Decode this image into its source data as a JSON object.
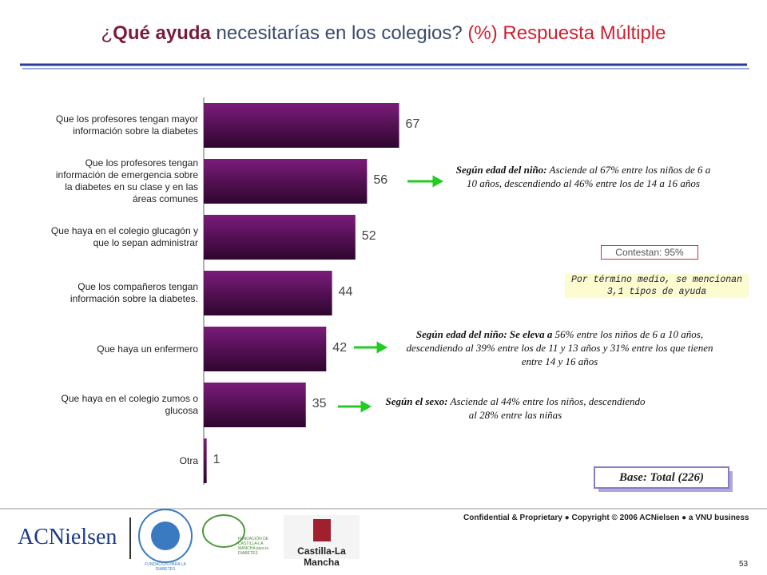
{
  "chart_data": {
    "type": "bar",
    "orientation": "horizontal",
    "title": [
      "¿",
      "Qué ayuda",
      " necesitarías en los colegios? ",
      "(%) Respuesta Múltiple"
    ],
    "categories": [
      "Que los profesores tengan mayor información sobre la diabetes",
      "Que los profesores tengan información de emergencia sobre la diabetes en su clase y en las áreas comunes",
      "Que haya en el colegio glucagón y que lo sepan administrar",
      "Que los compañeros tengan información sobre la diabetes.",
      "Que haya un enfermero",
      "Que haya en el colegio zumos o glucosa",
      "Otra"
    ],
    "values": [
      67,
      56,
      52,
      44,
      42,
      35,
      1
    ],
    "color": "#7a1c7a",
    "annotations": [
      {
        "bold": "Según edad del niño:",
        "text": " Asciende al 67% entre los niños de 6 a 10 años, descendiendo al 46% entre los de 14 a 16 años"
      },
      {
        "bold": "Según edad del niño: Se eleva a",
        "text": " 56% entre los niños de 6 a 10 años, descendiendo al 39% entre los de 11 y 13 años y 31% entre los que tienen entre 14 y  16 años"
      },
      {
        "bold": "Según el sexo:",
        "text": " Asciende al 44% entre  los niños, descendiendo al 28% entre  las niñas"
      }
    ],
    "answered": "Contestan: 95%",
    "average_note": "Por término medio, se mencionan 3,1 tipos de ayuda",
    "base": "Base: Total (226)"
  },
  "footer": {
    "confidential": "Confidential & Proprietary ● Copyright © 2006 ACNielsen ● a VNU business",
    "page": "53",
    "logos": [
      "ACNielsen",
      "FUNDACIÓN PARA LA DIABETES",
      "FUNDACIÓN DE CASTILLA-LA MANCHA para la DIABETES",
      "Castilla-La Mancha"
    ]
  }
}
